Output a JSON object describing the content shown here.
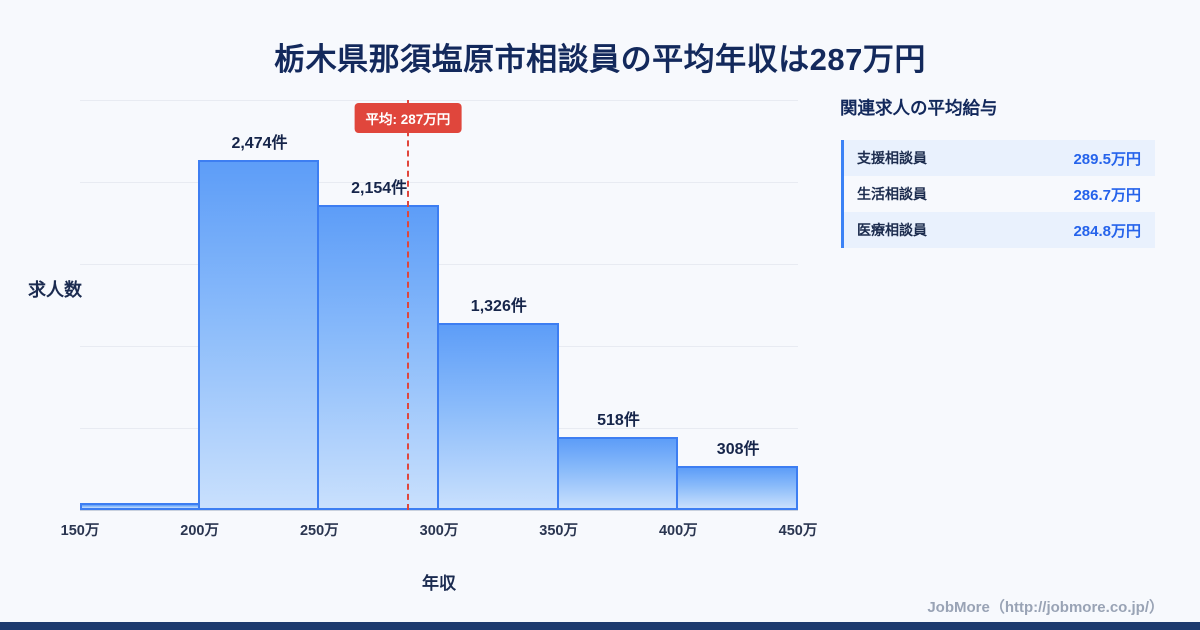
{
  "page": {
    "title": "栃木県那須塩原市相談員の平均年収は287万円",
    "footer": "JobMore（http://jobmore.co.jp/）"
  },
  "chart_data": {
    "type": "bar",
    "title": "栃木県那須塩原市相談員の平均年収は287万円",
    "xlabel": "年収",
    "ylabel": "求人数",
    "x_tick_labels": [
      "150万",
      "200万",
      "250万",
      "300万",
      "350万",
      "400万",
      "450万"
    ],
    "x_domain": [
      150,
      450
    ],
    "bins": [
      "150万-200万",
      "200万-250万",
      "250万-300万",
      "300万-350万",
      "350万-400万",
      "400万-450万"
    ],
    "values": [
      50,
      2474,
      2154,
      1326,
      518,
      308
    ],
    "bar_labels": [
      "",
      "2,474件",
      "2,154件",
      "1,326件",
      "518件",
      "308件"
    ],
    "ylim": [
      0,
      2900
    ],
    "grid": true,
    "legend": false,
    "average_line": {
      "value": 287,
      "label": "平均: 287万円"
    }
  },
  "side_panel": {
    "title": "関連求人の平均給与",
    "rows": [
      {
        "label": "支援相談員",
        "value": "289.5万円"
      },
      {
        "label": "生活相談員",
        "value": "286.7万円"
      },
      {
        "label": "医療相談員",
        "value": "284.8万円"
      }
    ]
  },
  "colors": {
    "bar_fill_top": "#5d9df8",
    "bar_fill_bottom": "#c9e0fd",
    "bar_border": "#3d7ef2",
    "average_accent": "#e0463c",
    "value_text": "#2563eb",
    "title_text": "#13295c",
    "bottom_strip": "#1d3a6e",
    "row_alt_bg": "#e9f1fd"
  }
}
